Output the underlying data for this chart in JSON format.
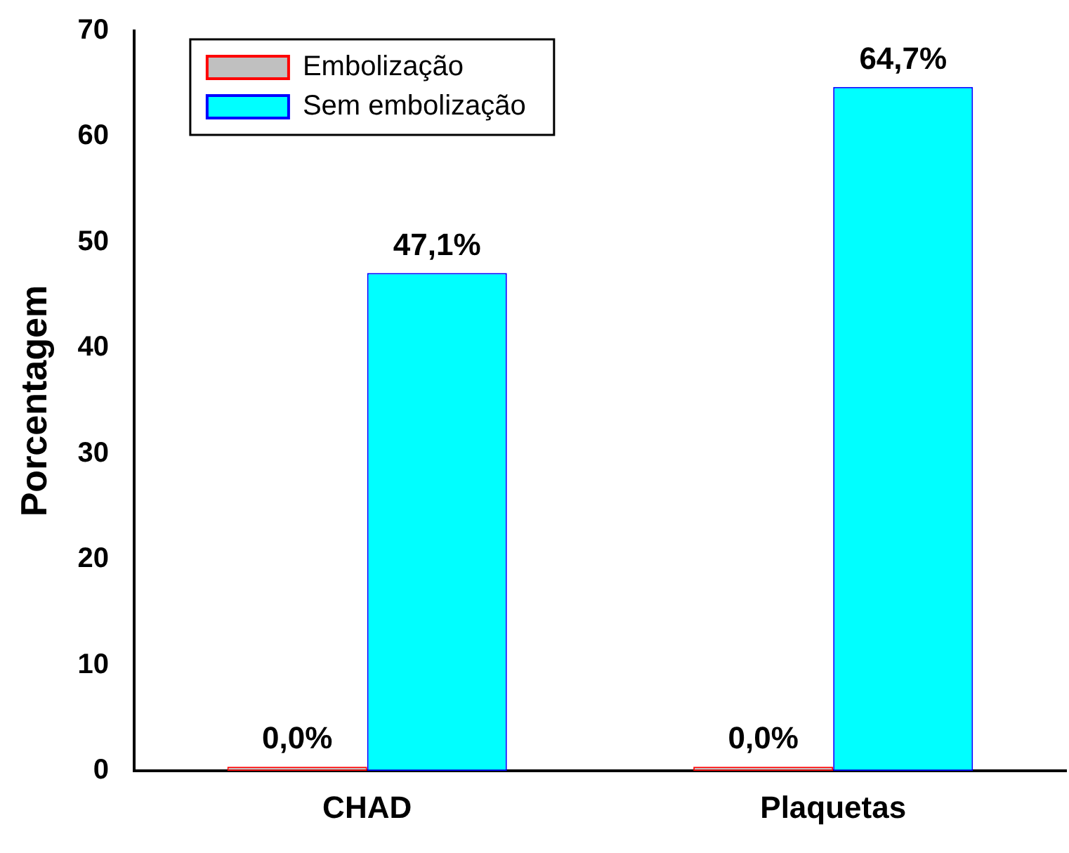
{
  "chart_data": {
    "type": "bar",
    "ylabel": "Porcentagem",
    "categories": [
      "CHAD",
      "Plaquetas"
    ],
    "series": [
      {
        "name": "Embolização",
        "color": "#c0c0c0",
        "values": [
          0,
          0
        ],
        "value_labels": [
          "0,0%",
          "0,0%"
        ]
      },
      {
        "name": "Sem embolização",
        "color": "#00ffff",
        "values": [
          47.1,
          64.7
        ],
        "value_labels": [
          "47,1%",
          "64,7%"
        ]
      }
    ],
    "ylim": [
      0,
      70
    ],
    "yticks": [
      0,
      10,
      20,
      30,
      40,
      50,
      60,
      70
    ],
    "grid": false,
    "legend": "top left"
  }
}
